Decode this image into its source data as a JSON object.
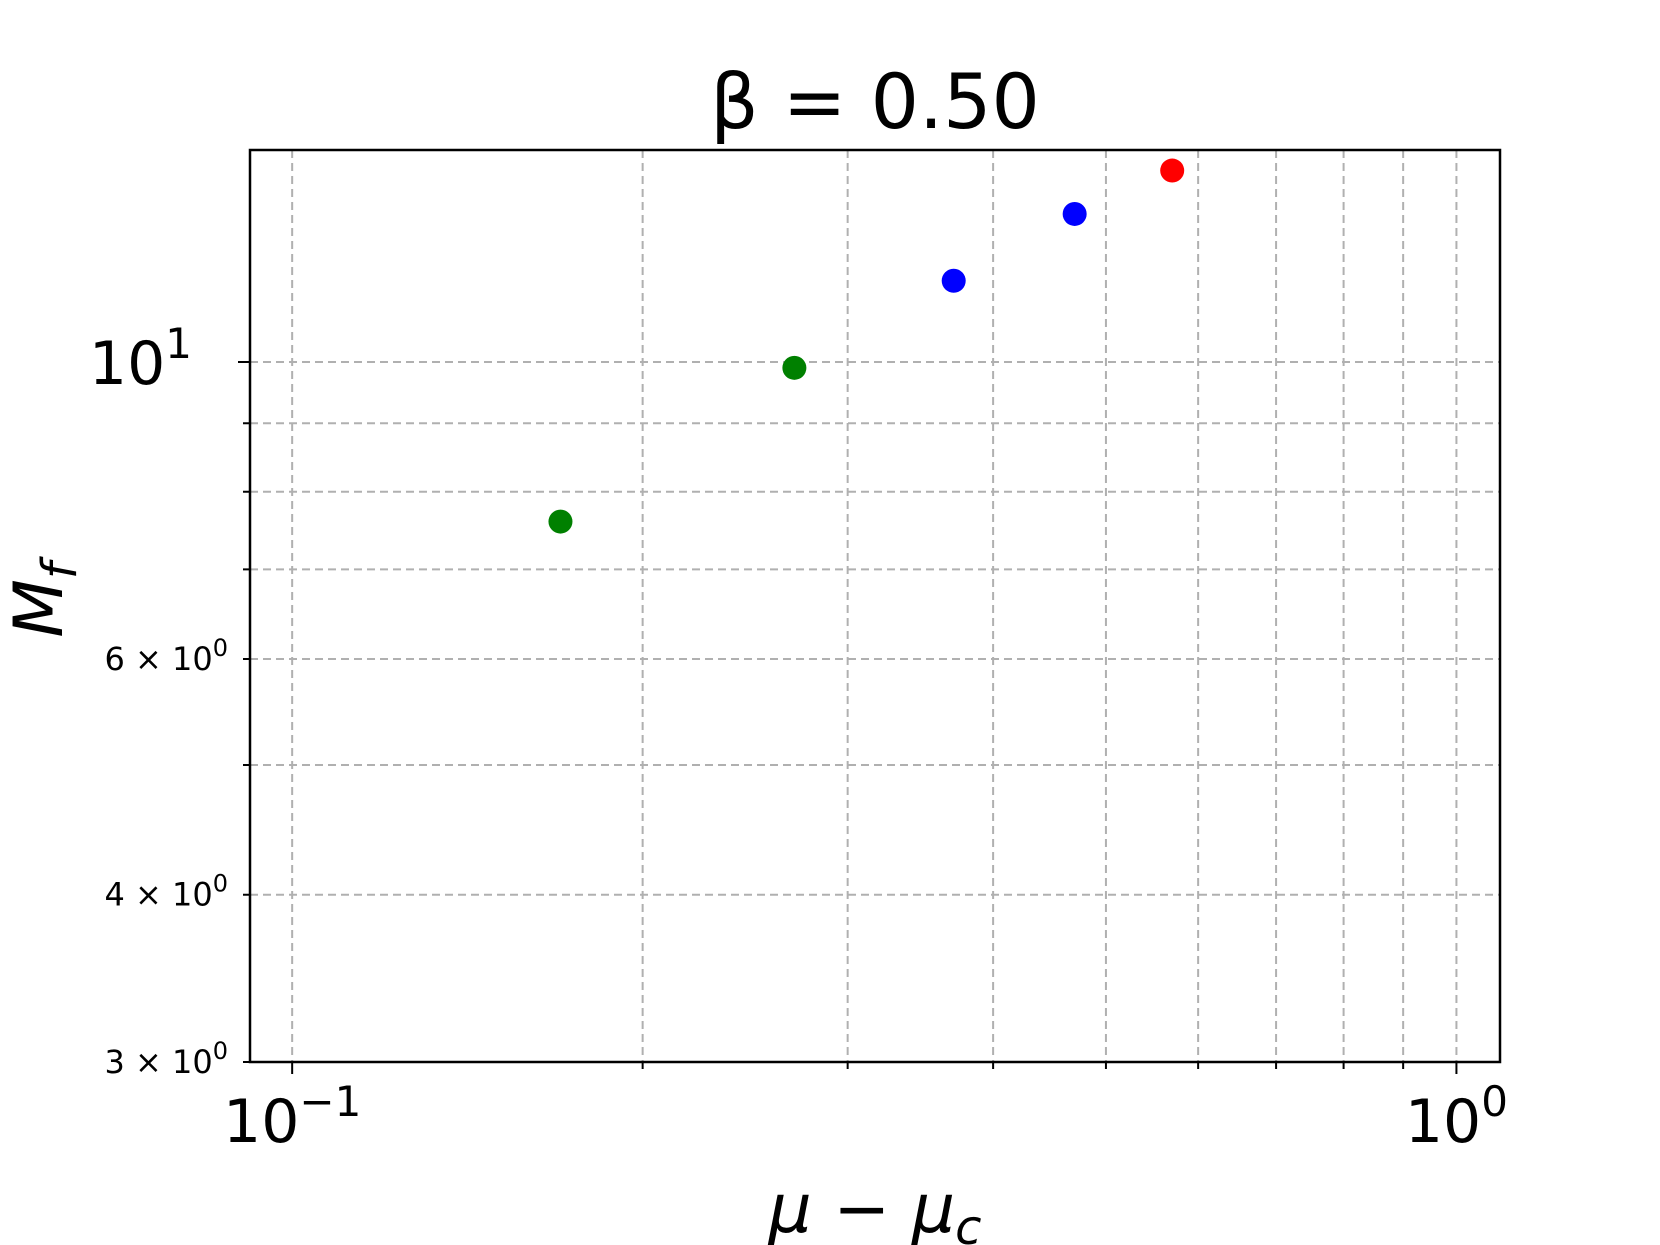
{
  "chart_data": {
    "type": "scatter",
    "title": "β = 0.50",
    "xlabel": "μ − μ_c",
    "ylabel": "M_f",
    "xscale": "log",
    "yscale": "log",
    "xlim": [
      0.092,
      1.09
    ],
    "ylim": [
      3.0,
      14.4
    ],
    "grid": true,
    "x_major_ticks": [
      {
        "value": 0.1,
        "base": "10",
        "exp": "−1"
      },
      {
        "value": 1.0,
        "base": "10",
        "exp": "0"
      }
    ],
    "x_minor_ticks": [
      0.2,
      0.3,
      0.4,
      0.5,
      0.6,
      0.7,
      0.8,
      0.9
    ],
    "y_major_ticks": [
      {
        "value": 10,
        "base": "10",
        "exp": "1"
      }
    ],
    "y_minor_ticks": [
      {
        "value": 3,
        "label": "3 × 10",
        "exp": "0"
      },
      {
        "value": 4,
        "label": "4 × 10",
        "exp": "0"
      },
      {
        "value": 5,
        "label": "",
        "exp": ""
      },
      {
        "value": 6,
        "label": "6 × 10",
        "exp": "0"
      },
      {
        "value": 7,
        "label": "",
        "exp": ""
      },
      {
        "value": 8,
        "label": "",
        "exp": ""
      },
      {
        "value": 9,
        "label": "",
        "exp": ""
      }
    ],
    "points": [
      {
        "x": 0.17,
        "y": 7.6,
        "color": "#008000"
      },
      {
        "x": 0.27,
        "y": 9.9,
        "color": "#008000"
      },
      {
        "x": 0.37,
        "y": 11.5,
        "color": "#0000ff"
      },
      {
        "x": 0.47,
        "y": 12.9,
        "color": "#0000ff"
      },
      {
        "x": 0.57,
        "y": 13.9,
        "color": "#ff0000"
      }
    ]
  }
}
